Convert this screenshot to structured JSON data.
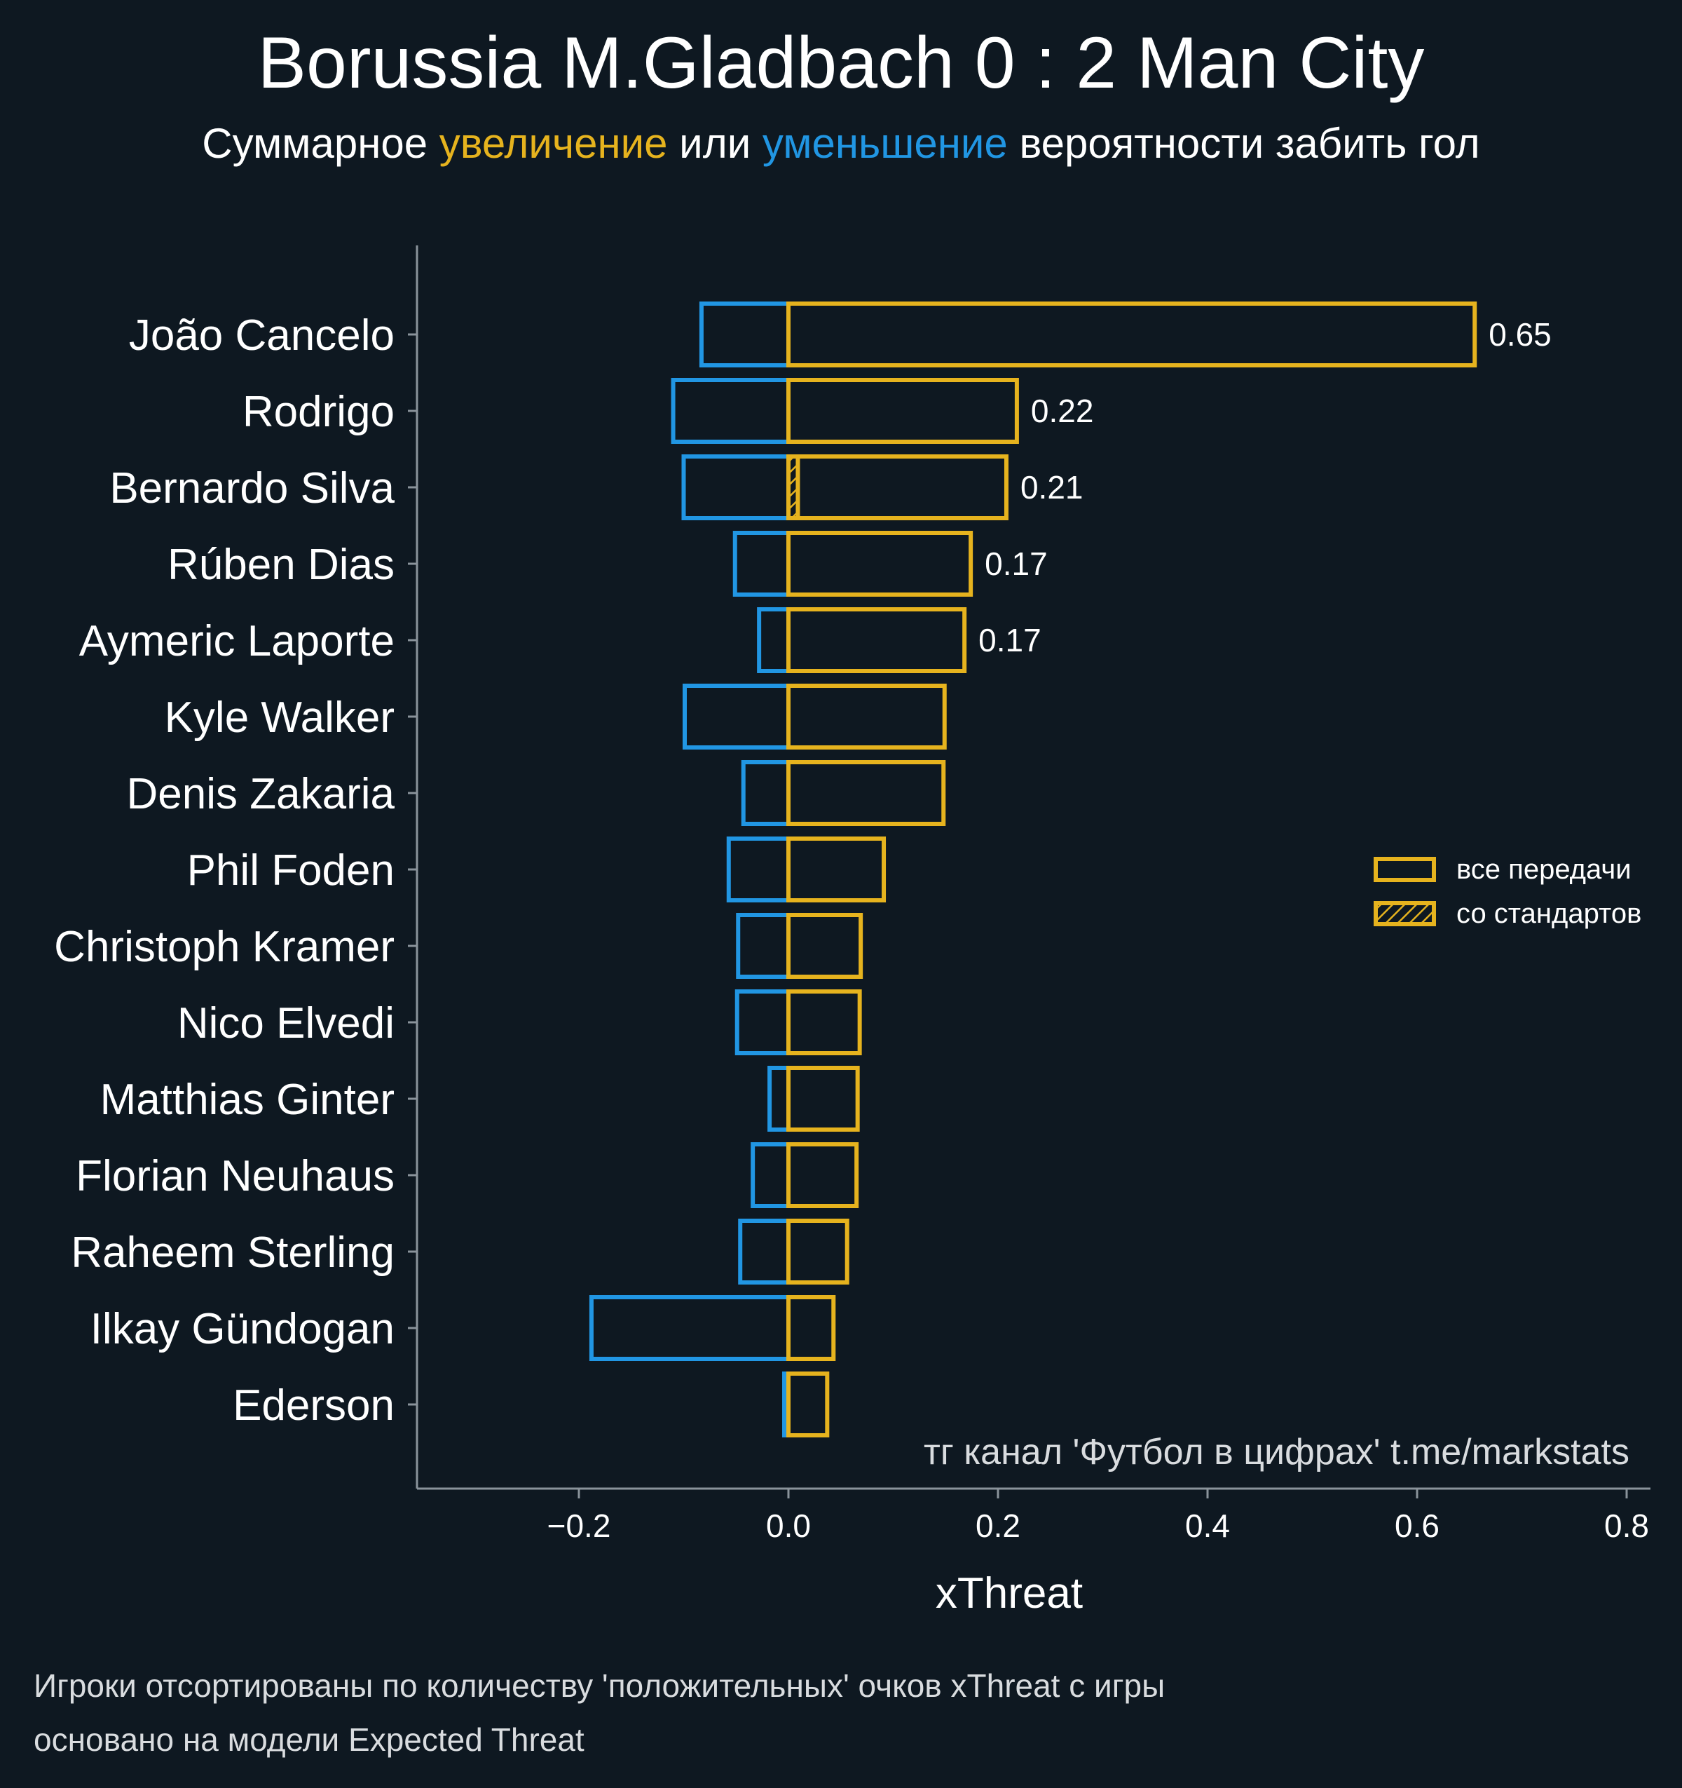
{
  "title": "Borussia M.Gladbach 0 : 2 Man City",
  "subtitle": {
    "part1": "Суммарное ",
    "part2": "увеличение",
    "part3": " или ",
    "part4": "уменьшение",
    "part5": " вероятности забить гол"
  },
  "colors": {
    "background": "#0e1821",
    "positive": "#e6b31e",
    "negative": "#2196e3",
    "text": "#ffffff",
    "axis": "#8a939b",
    "muted": "#d9dcdf"
  },
  "legend": {
    "all_passes": "все передачи",
    "set_pieces": "со стандартов"
  },
  "watermark": "тг канал 'Футбол в цифрах'  t.me/markstats",
  "footer": {
    "line1": "Игроки отсортированы по количеству 'положительных' очков xThreat с игры",
    "line2": "основано на модели Expected Threat"
  },
  "chart_data": {
    "type": "bar",
    "orientation": "horizontal",
    "xlabel": "xThreat",
    "xlim": [
      -0.35,
      0.82
    ],
    "xticks": [
      -0.2,
      0.0,
      0.2,
      0.4,
      0.6,
      0.8
    ],
    "xtick_labels": [
      "−0.2",
      "0.0",
      "0.2",
      "0.4",
      "0.6",
      "0.8"
    ],
    "categories": [
      "João Cancelo",
      "Rodrigo",
      "Bernardo Silva",
      "Rúben Dias",
      "Aymeric Laporte",
      "Kyle Walker",
      "Denis Zakaria",
      "Phil Foden",
      "Christoph Kramer",
      "Nico Elvedi",
      "Matthias Ginter",
      "Florian Neuhaus",
      "Raheem Sterling",
      "Ilkay Gündogan",
      "Ederson"
    ],
    "series": [
      {
        "name": "positive",
        "values": [
          0.655,
          0.218,
          0.208,
          0.174,
          0.168,
          0.149,
          0.148,
          0.091,
          0.069,
          0.068,
          0.066,
          0.065,
          0.056,
          0.043,
          0.037
        ]
      },
      {
        "name": "negative",
        "values": [
          -0.083,
          -0.11,
          -0.1,
          -0.051,
          -0.028,
          -0.099,
          -0.043,
          -0.057,
          -0.048,
          -0.049,
          -0.018,
          -0.034,
          -0.046,
          -0.188,
          -0.004
        ]
      },
      {
        "name": "set_pieces_positive",
        "values": [
          0,
          0,
          0.009,
          0,
          0,
          0,
          0,
          0,
          0,
          0,
          0,
          0,
          0,
          0,
          0
        ]
      }
    ],
    "value_labels": [
      "0.65",
      "0.22",
      "0.21",
      "0.17",
      "0.17",
      "",
      "",
      "",
      "",
      "",
      "",
      "",
      "",
      "",
      ""
    ]
  }
}
